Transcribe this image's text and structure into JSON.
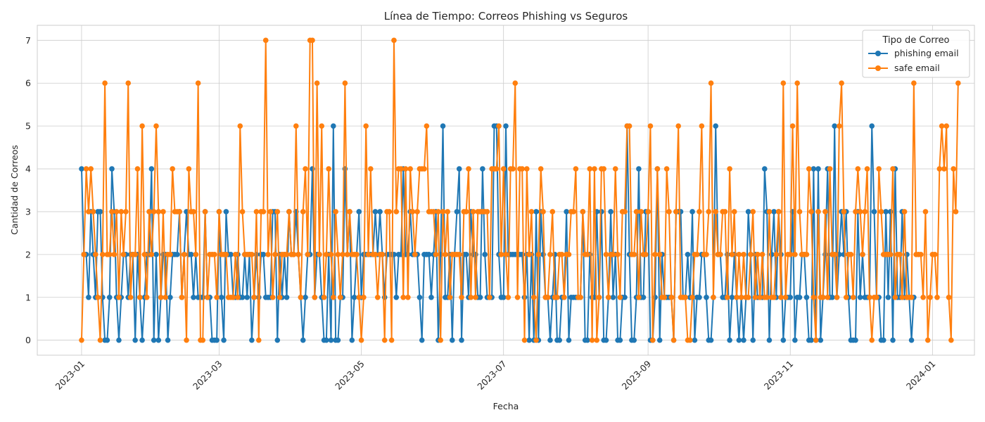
{
  "chart_data": {
    "type": "line",
    "title": "Línea de Tiempo: Correos Phishing vs Seguros",
    "xlabel": "Fecha",
    "ylabel": "Cantidad de Correos",
    "ylim": [
      -0.35,
      7.35
    ],
    "yticks": [
      0,
      1,
      2,
      3,
      4,
      5,
      6,
      7
    ],
    "xlim": [
      "2022-12-13",
      "2024-01-19"
    ],
    "xticks": [
      "2023-01",
      "2023-03",
      "2023-05",
      "2023-07",
      "2023-09",
      "2023-11",
      "2024-01"
    ],
    "xtick_dates": [
      "2023-01-01",
      "2023-03-01",
      "2023-05-01",
      "2023-07-01",
      "2023-09-01",
      "2023-11-01",
      "2024-01-01"
    ],
    "x_start": "2023-01-01",
    "grid": true,
    "legend": {
      "title": "Tipo de Correo",
      "placement": "top-right"
    },
    "colors": {
      "phishing email": "#1f77b4",
      "safe email": "#ff7f0e"
    },
    "series": [
      {
        "name": "phishing email",
        "values": [
          4,
          2,
          2,
          1,
          3,
          2,
          1,
          3,
          3,
          1,
          0,
          0,
          1,
          4,
          3,
          1,
          0,
          1,
          2,
          2,
          1,
          2,
          2,
          0,
          2,
          1,
          0,
          1,
          2,
          2,
          4,
          0,
          2,
          0,
          1,
          2,
          2,
          0,
          1,
          2,
          2,
          2,
          3,
          1,
          2,
          3,
          2,
          2,
          1,
          2,
          1,
          1,
          1,
          3,
          1,
          1,
          0,
          0,
          0,
          3,
          1,
          0,
          3,
          2,
          2,
          1,
          1,
          2,
          1,
          1,
          2,
          1,
          2,
          0,
          1,
          2,
          1,
          2,
          2,
          1,
          1,
          1,
          3,
          3,
          0,
          2,
          1,
          2,
          1,
          3,
          2,
          2,
          3,
          2,
          1,
          0,
          1,
          2,
          2,
          4,
          1,
          2,
          2,
          1,
          0,
          0,
          2,
          0,
          5,
          0,
          0,
          1,
          1,
          4,
          2,
          3,
          0,
          1,
          2,
          3,
          1,
          2,
          2,
          2,
          2,
          2,
          3,
          2,
          3,
          2,
          1,
          2,
          2,
          2,
          2,
          1,
          2,
          2,
          4,
          2,
          2,
          3,
          2,
          2,
          2,
          1,
          0,
          2,
          2,
          2,
          1,
          2,
          3,
          0,
          2,
          5,
          1,
          1,
          2,
          0,
          2,
          3,
          4,
          0,
          2,
          2,
          1,
          3,
          2,
          2,
          1,
          1,
          4,
          2,
          1,
          1,
          1,
          5,
          5,
          2,
          1,
          1,
          5,
          2,
          2,
          2,
          2,
          2,
          2,
          2,
          1,
          2,
          0,
          2,
          0,
          3,
          0,
          3,
          2,
          1,
          1,
          0,
          1,
          2,
          0,
          0,
          1,
          1,
          3,
          0,
          1,
          1,
          1,
          1,
          1,
          3,
          0,
          0,
          2,
          1,
          1,
          3,
          1,
          3,
          0,
          0,
          1,
          3,
          1,
          2,
          0,
          0,
          1,
          1,
          5,
          2,
          0,
          0,
          1,
          4,
          1,
          1,
          3,
          3,
          0,
          0,
          1,
          4,
          0,
          2,
          1,
          1,
          1,
          1,
          0,
          3,
          3,
          3,
          1,
          1,
          2,
          1,
          3,
          0,
          1,
          1,
          2,
          2,
          1,
          0,
          0,
          1,
          5,
          2,
          2,
          1,
          1,
          2,
          0,
          1,
          2,
          1,
          0,
          1,
          0,
          1,
          3,
          2,
          0,
          2,
          1,
          1,
          1,
          4,
          3,
          0,
          2,
          3,
          1,
          3,
          2,
          0,
          1,
          1,
          1,
          3,
          0,
          1,
          1,
          2,
          2,
          1,
          0,
          0,
          4,
          0,
          4,
          0,
          1,
          2,
          4,
          1,
          1,
          5,
          1,
          2,
          3,
          2,
          3,
          1,
          0,
          0,
          0,
          3,
          1,
          2,
          1,
          1,
          1,
          5,
          3,
          1,
          1,
          0,
          0,
          3,
          1,
          3,
          0,
          4,
          1,
          1,
          3,
          1,
          2,
          1,
          0,
          1
        ]
      },
      {
        "name": "safe email",
        "values": [
          0,
          2,
          4,
          3,
          4,
          3,
          2,
          1,
          0,
          2,
          6,
          2,
          2,
          3,
          2,
          3,
          1,
          3,
          2,
          3,
          6,
          1,
          2,
          2,
          4,
          1,
          5,
          2,
          1,
          3,
          2,
          3,
          5,
          3,
          1,
          3,
          1,
          2,
          2,
          4,
          3,
          3,
          3,
          1,
          2,
          0,
          4,
          3,
          3,
          2,
          6,
          0,
          0,
          3,
          1,
          2,
          2,
          2,
          1,
          3,
          2,
          2,
          2,
          1,
          1,
          1,
          2,
          1,
          5,
          3,
          2,
          2,
          2,
          2,
          1,
          3,
          0,
          3,
          3,
          7,
          2,
          3,
          1,
          2,
          3,
          1,
          2,
          2,
          2,
          3,
          2,
          2,
          5,
          2,
          1,
          3,
          4,
          2,
          7,
          7,
          1,
          6,
          2,
          5,
          1,
          2,
          4,
          2,
          1,
          3,
          2,
          1,
          2,
          6,
          2,
          3,
          2,
          2,
          2,
          1,
          0,
          1,
          5,
          2,
          4,
          2,
          2,
          1,
          2,
          2,
          0,
          3,
          3,
          0,
          7,
          3,
          4,
          4,
          1,
          4,
          1,
          4,
          3,
          2,
          3,
          4,
          4,
          4,
          5,
          3,
          3,
          3,
          2,
          3,
          0,
          3,
          2,
          3,
          1,
          2,
          2,
          2,
          2,
          1,
          3,
          3,
          4,
          1,
          3,
          1,
          3,
          3,
          3,
          3,
          3,
          1,
          4,
          4,
          4,
          5,
          2,
          4,
          2,
          1,
          4,
          4,
          6,
          1,
          4,
          4,
          0,
          4,
          2,
          3,
          1,
          0,
          2,
          4,
          3,
          1,
          1,
          2,
          3,
          1,
          1,
          2,
          2,
          1,
          2,
          2,
          3,
          3,
          4,
          1,
          1,
          3,
          2,
          2,
          4,
          0,
          4,
          0,
          1,
          4,
          4,
          2,
          1,
          2,
          2,
          4,
          2,
          1,
          3,
          3,
          5,
          5,
          2,
          2,
          3,
          1,
          3,
          2,
          2,
          3,
          5,
          0,
          2,
          4,
          2,
          1,
          1,
          4,
          3,
          1,
          0,
          3,
          5,
          1,
          1,
          1,
          0,
          0,
          1,
          2,
          2,
          3,
          5,
          2,
          2,
          3,
          6,
          1,
          3,
          2,
          2,
          3,
          3,
          1,
          4,
          2,
          3,
          1,
          2,
          1,
          2,
          1,
          1,
          2,
          3,
          1,
          2,
          1,
          2,
          1,
          1,
          3,
          1,
          1,
          2,
          3,
          1,
          6,
          1,
          2,
          2,
          5,
          2,
          6,
          3,
          2,
          2,
          2,
          4,
          3,
          1,
          0,
          3,
          1,
          1,
          3,
          1,
          4,
          2,
          2,
          1,
          5,
          6,
          3,
          1,
          2,
          2,
          1,
          3,
          4,
          3,
          2,
          3,
          4,
          1,
          0,
          1,
          1,
          4,
          3,
          2,
          2,
          2,
          2,
          4,
          1,
          2,
          2,
          1,
          3,
          1,
          1,
          1,
          6,
          2,
          2,
          2,
          1,
          3,
          0,
          1,
          2,
          2,
          1,
          4,
          5,
          4,
          5,
          1,
          0,
          4,
          3,
          6
        ]
      }
    ]
  }
}
